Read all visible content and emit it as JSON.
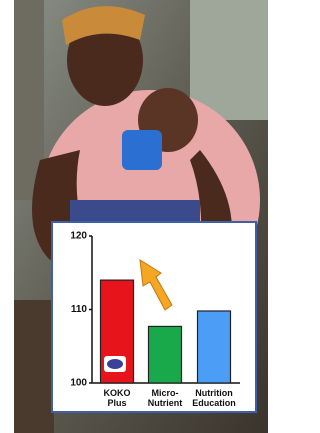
{
  "chart_data": {
    "type": "bar",
    "categories": [
      "KOKO Plus",
      "Micro-Nutrient",
      "Nutrition Education"
    ],
    "values": [
      114,
      107.7,
      109.8
    ],
    "colors": [
      "#e8141c",
      "#19a84a",
      "#4c9df5"
    ],
    "ylim": [
      100,
      120
    ],
    "yticks": [
      100,
      110,
      120
    ]
  }
}
